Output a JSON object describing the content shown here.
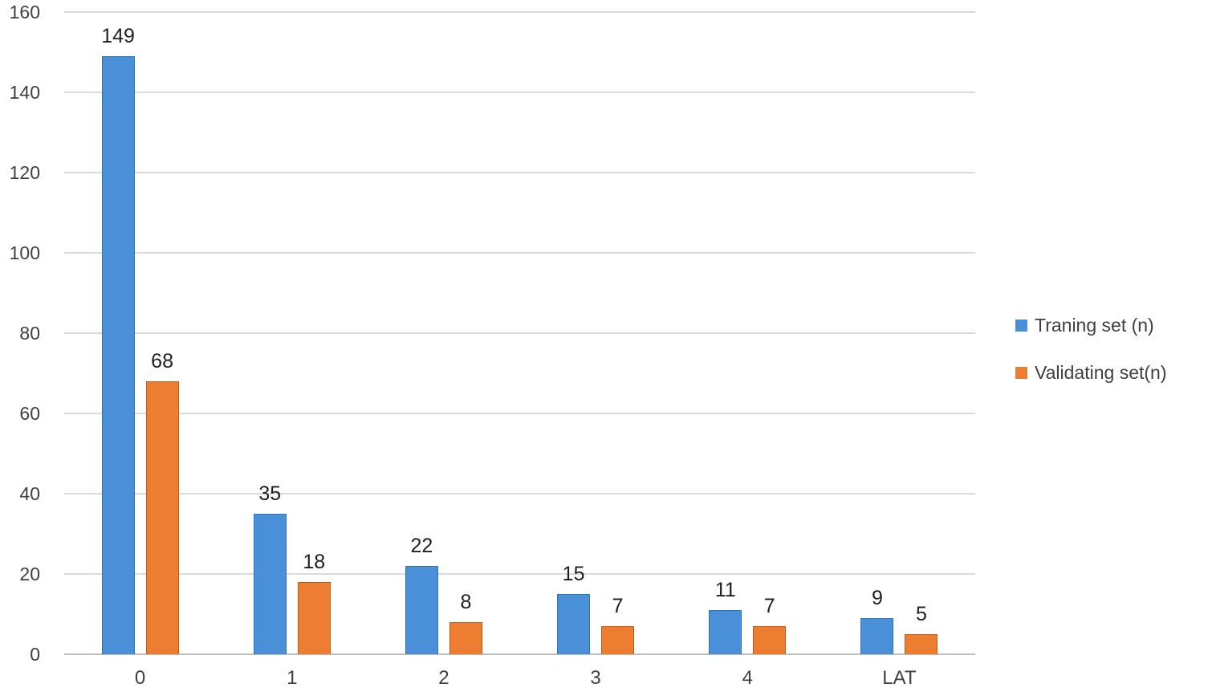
{
  "chart_data": {
    "type": "bar",
    "categories": [
      "0",
      "1",
      "2",
      "3",
      "4",
      "LAT"
    ],
    "series": [
      {
        "name": "Traning set (n)",
        "color": "#4a90d9",
        "border_color": "#2e75b6",
        "values": [
          149,
          35,
          22,
          15,
          11,
          9
        ]
      },
      {
        "name": "Validating set(n)",
        "color": "#ed7d31",
        "border_color": "#c55a11",
        "values": [
          68,
          18,
          8,
          7,
          7,
          5
        ]
      }
    ],
    "title": "",
    "xlabel": "",
    "ylabel": "",
    "ylim": [
      0,
      160
    ],
    "yticks": [
      0,
      20,
      40,
      60,
      80,
      100,
      120,
      140,
      160
    ],
    "grid": true,
    "data_labels": true,
    "legend_position": "right",
    "gridline_color": "#dadada",
    "axis_line_color": "#bfbfbf",
    "tick_text_color": "#404040",
    "data_label_color": "#1f1f1f",
    "background_color": "#ffffff"
  }
}
